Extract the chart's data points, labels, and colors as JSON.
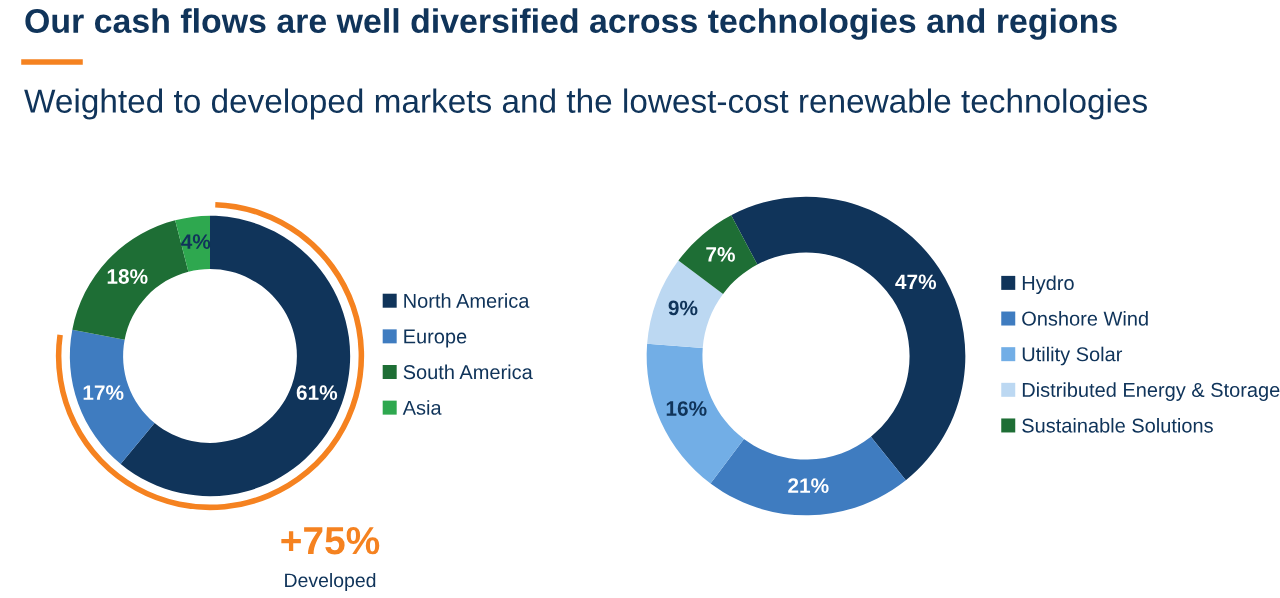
{
  "chart_data": [
    {
      "type": "donut",
      "title": "Our cash flows are well diversified across technologies and regions",
      "subtitle": "Weighted to developed markets and the lowest-cost renewable technologies",
      "categories": [
        "North America",
        "Europe",
        "South America",
        "Asia"
      ],
      "values": [
        61,
        17,
        18,
        4
      ],
      "colors": [
        "#10345a",
        "#3f7cc0",
        "#1e6e35",
        "#2ea84f"
      ],
      "value_labels": [
        "61%",
        "17%",
        "18%",
        "4%"
      ],
      "legend": "right",
      "annotations": [
        "+75%",
        "Developed"
      ]
    },
    {
      "type": "donut",
      "categories": [
        "Hydro",
        "Onshore Wind",
        "Utility Solar",
        "Distributed Energy & Storage",
        "Sustainable Solutions"
      ],
      "values": [
        47,
        21,
        16,
        9,
        7
      ],
      "colors": [
        "#10345a",
        "#3f7cc0",
        "#72aee6",
        "#bcd8f2",
        "#1e6e35"
      ],
      "value_labels": [
        "47%",
        "21%",
        "16%",
        "9%",
        "7%"
      ],
      "legend": "right"
    }
  ]
}
